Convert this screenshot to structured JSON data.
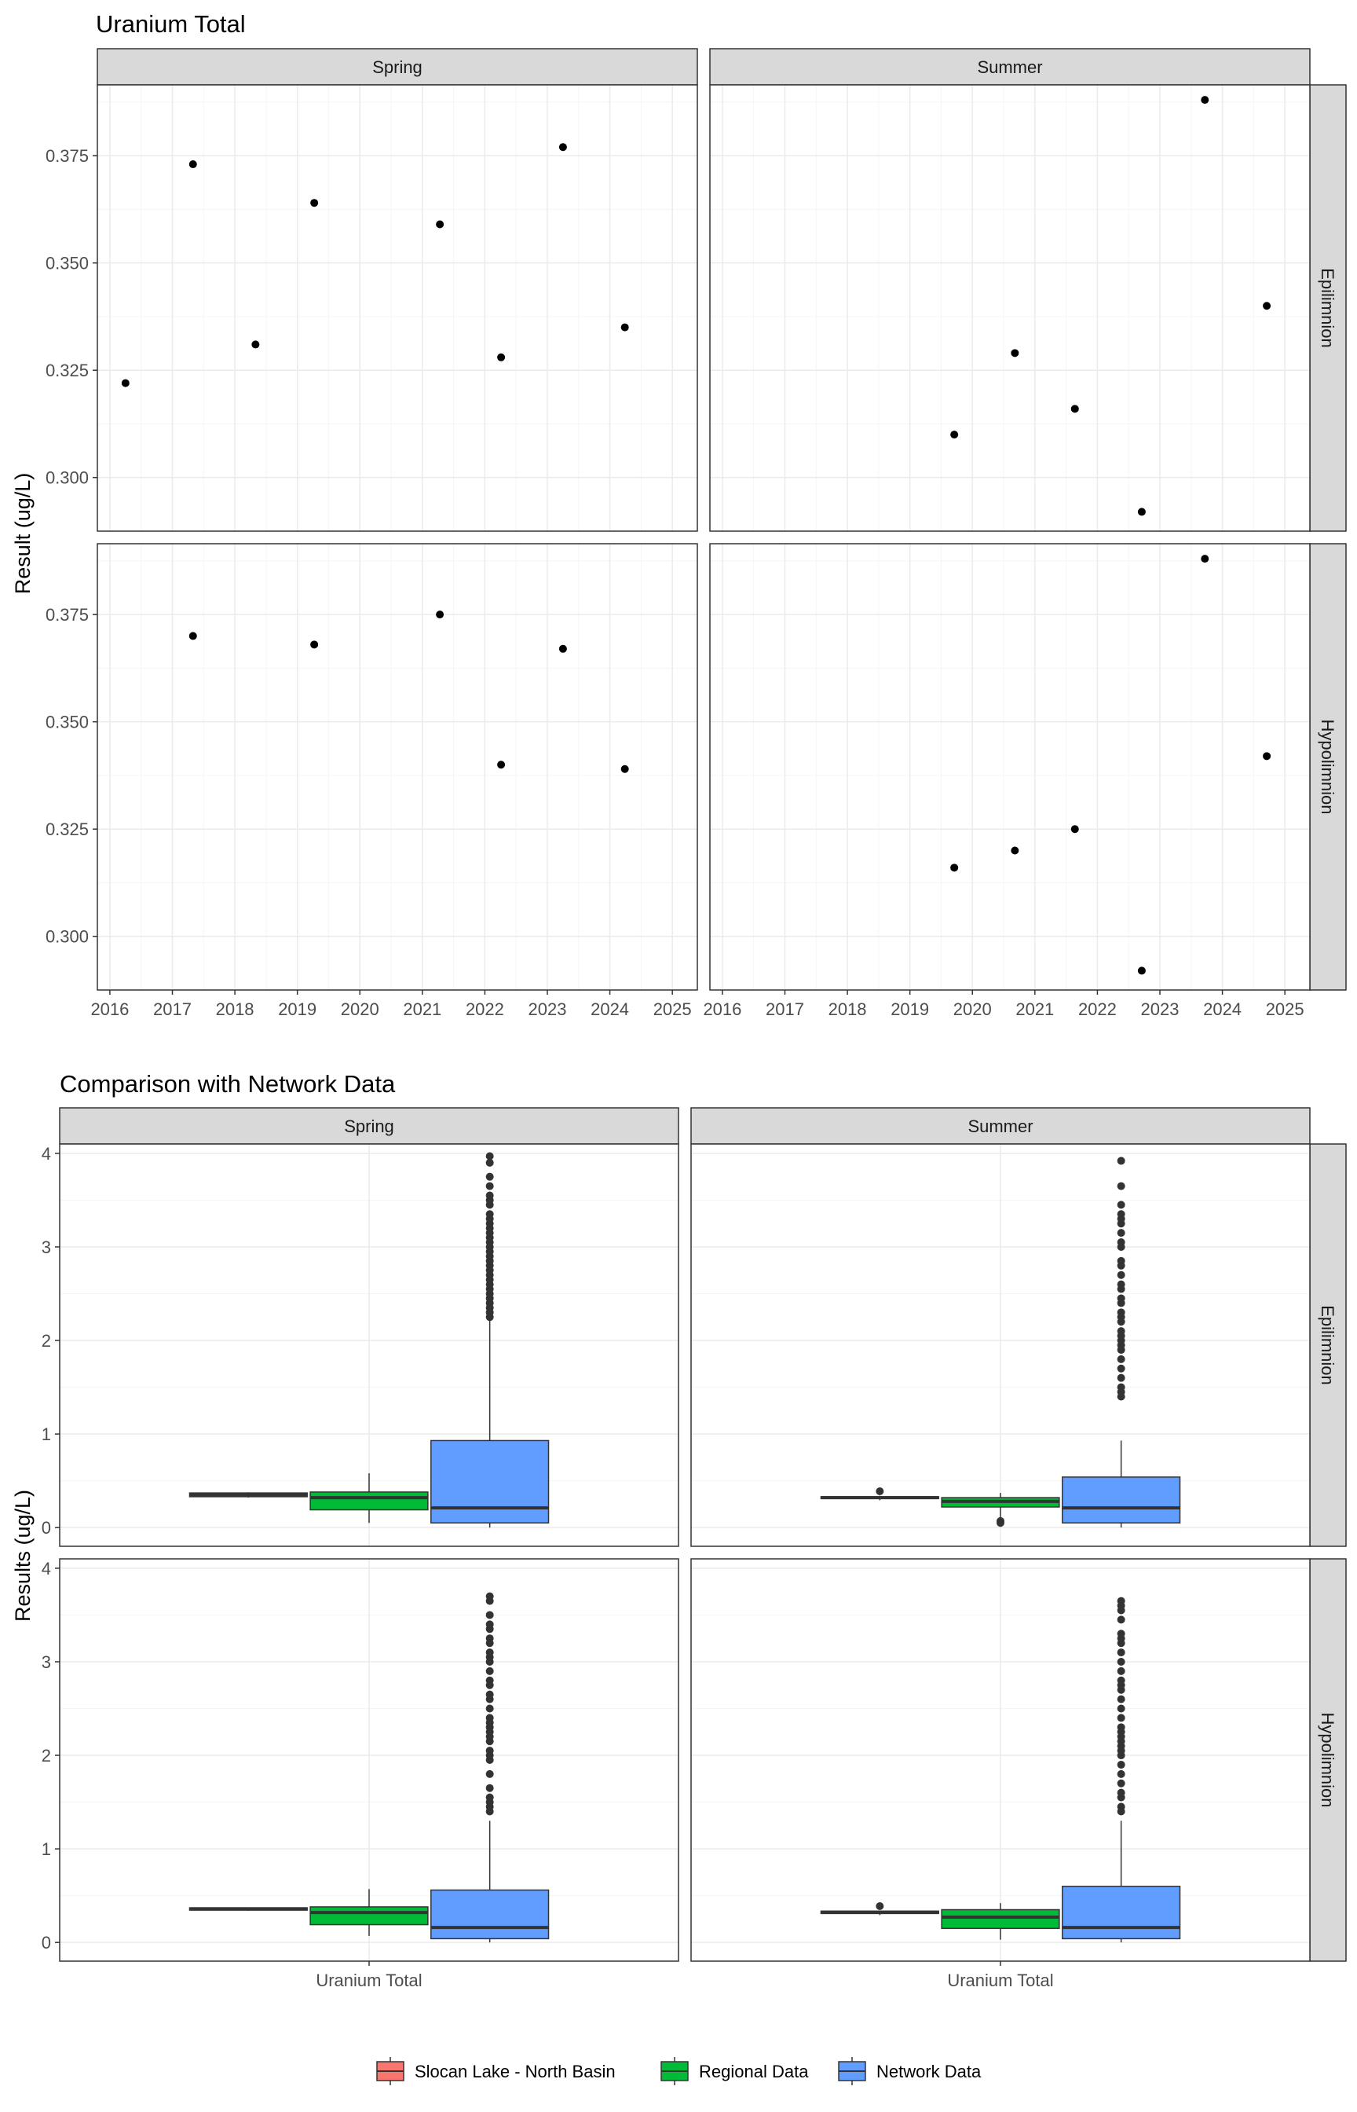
{
  "colors": {
    "panel_border": "#333333",
    "strip_fill": "#d9d9d9",
    "grid_major": "#ebebeb",
    "grid_minor": "#f5f5f5",
    "point": "#000000",
    "tick_text": "#4d4d4d",
    "slocan_fill": "#f8766d",
    "regional_fill": "#00ba38",
    "network_fill": "#619cff"
  },
  "legend": {
    "items": [
      {
        "label": "Slocan Lake - North Basin",
        "color": "#f8766d"
      },
      {
        "label": "Regional Data",
        "color": "#00ba38"
      },
      {
        "label": "Network Data",
        "color": "#619cff"
      }
    ]
  },
  "chart_data": [
    {
      "type": "scatter",
      "title": "Uranium Total",
      "ylabel": "Result (ug/L)",
      "xlabel": "",
      "columns": [
        "Spring",
        "Summer"
      ],
      "rows": [
        "Epilimnion",
        "Hypolimnion"
      ],
      "xlim": [
        2015.8,
        2025.4
      ],
      "ylim": [
        0.2875,
        0.3915
      ],
      "xticks": [
        2016,
        2017,
        2018,
        2019,
        2020,
        2021,
        2022,
        2023,
        2024,
        2025
      ],
      "xtick_labels": [
        "2016",
        "2017",
        "2018",
        "2019",
        "2020",
        "2021",
        "2022",
        "2023",
        "2024",
        "2025"
      ],
      "yticks": [
        0.3,
        0.325,
        0.35,
        0.375
      ],
      "ytick_labels": [
        "0.300",
        "0.325",
        "0.350",
        "0.375"
      ],
      "grid": true,
      "panels": [
        {
          "column": "Spring",
          "row": "Epilimnion",
          "points": [
            [
              2016.25,
              0.322
            ],
            [
              2017.33,
              0.373
            ],
            [
              2018.33,
              0.331
            ],
            [
              2019.27,
              0.364
            ],
            [
              2021.28,
              0.359
            ],
            [
              2022.26,
              0.328
            ],
            [
              2023.25,
              0.377
            ],
            [
              2024.24,
              0.335
            ]
          ]
        },
        {
          "column": "Summer",
          "row": "Epilimnion",
          "points": [
            [
              2019.71,
              0.31
            ],
            [
              2020.68,
              0.329
            ],
            [
              2021.64,
              0.316
            ],
            [
              2022.71,
              0.292
            ],
            [
              2023.72,
              0.388
            ],
            [
              2024.71,
              0.34
            ]
          ]
        },
        {
          "column": "Spring",
          "row": "Hypolimnion",
          "points": [
            [
              2017.33,
              0.37
            ],
            [
              2019.27,
              0.368
            ],
            [
              2021.28,
              0.375
            ],
            [
              2022.26,
              0.34
            ],
            [
              2023.25,
              0.367
            ],
            [
              2024.24,
              0.339
            ]
          ]
        },
        {
          "column": "Summer",
          "row": "Hypolimnion",
          "points": [
            [
              2019.71,
              0.316
            ],
            [
              2020.68,
              0.32
            ],
            [
              2021.64,
              0.325
            ],
            [
              2022.71,
              0.292
            ],
            [
              2023.72,
              0.388
            ],
            [
              2024.71,
              0.342
            ]
          ]
        }
      ]
    },
    {
      "type": "boxplot",
      "title": "Comparison with Network Data",
      "ylabel": "Results (ug/L)",
      "xlabel": "",
      "category": "Uranium Total",
      "columns": [
        "Spring",
        "Summer"
      ],
      "rows": [
        "Epilimnion",
        "Hypolimnion"
      ],
      "ylim": [
        -0.2,
        4.1
      ],
      "yticks": [
        0,
        1,
        2,
        3,
        4
      ],
      "ytick_labels": [
        "0",
        "1",
        "2",
        "3",
        "4"
      ],
      "grid": true,
      "legend_position": "bottom",
      "series": [
        "Slocan Lake - North Basin",
        "Regional Data",
        "Network Data"
      ],
      "panels": [
        {
          "column": "Spring",
          "row": "Epilimnion",
          "boxes": [
            {
              "series": "Slocan Lake - North Basin",
              "q1": 0.33,
              "median": 0.35,
              "q3": 0.37,
              "whisker_low": 0.32,
              "whisker_high": 0.377,
              "outliers": []
            },
            {
              "series": "Regional Data",
              "q1": 0.19,
              "median": 0.32,
              "q3": 0.38,
              "whisker_low": 0.05,
              "whisker_high": 0.58,
              "outliers": []
            },
            {
              "series": "Network Data",
              "q1": 0.05,
              "median": 0.21,
              "q3": 0.93,
              "whisker_low": 0.0,
              "whisker_high": 2.22,
              "outliers": [
                2.25,
                2.3,
                2.35,
                2.4,
                2.45,
                2.5,
                2.55,
                2.6,
                2.65,
                2.7,
                2.75,
                2.8,
                2.85,
                2.9,
                2.95,
                3.0,
                3.05,
                3.1,
                3.15,
                3.2,
                3.25,
                3.3,
                3.35,
                3.45,
                3.5,
                3.55,
                3.65,
                3.75,
                3.9,
                3.97
              ]
            }
          ]
        },
        {
          "column": "Summer",
          "row": "Epilimnion",
          "boxes": [
            {
              "series": "Slocan Lake - North Basin",
              "q1": 0.31,
              "median": 0.32,
              "q3": 0.33,
              "whisker_low": 0.292,
              "whisker_high": 0.34,
              "outliers": [
                0.388
              ]
            },
            {
              "series": "Regional Data",
              "q1": 0.22,
              "median": 0.28,
              "q3": 0.32,
              "whisker_low": 0.1,
              "whisker_high": 0.37,
              "outliers": [
                0.05,
                0.07
              ]
            },
            {
              "series": "Network Data",
              "q1": 0.05,
              "median": 0.21,
              "q3": 0.54,
              "whisker_low": 0.0,
              "whisker_high": 0.93,
              "outliers": [
                1.4,
                1.45,
                1.5,
                1.6,
                1.7,
                1.8,
                1.9,
                1.95,
                2.0,
                2.05,
                2.1,
                2.2,
                2.25,
                2.3,
                2.4,
                2.45,
                2.55,
                2.6,
                2.7,
                2.8,
                2.85,
                3.0,
                3.05,
                3.15,
                3.25,
                3.3,
                3.35,
                3.45,
                3.65,
                3.92
              ]
            }
          ]
        },
        {
          "column": "Spring",
          "row": "Hypolimnion",
          "boxes": [
            {
              "series": "Slocan Lake - North Basin",
              "q1": 0.345,
              "median": 0.36,
              "q3": 0.37,
              "whisker_low": 0.339,
              "whisker_high": 0.375,
              "outliers": []
            },
            {
              "series": "Regional Data",
              "q1": 0.19,
              "median": 0.32,
              "q3": 0.38,
              "whisker_low": 0.07,
              "whisker_high": 0.57,
              "outliers": []
            },
            {
              "series": "Network Data",
              "q1": 0.04,
              "median": 0.16,
              "q3": 0.56,
              "whisker_low": 0.0,
              "whisker_high": 1.3,
              "outliers": [
                1.4,
                1.45,
                1.5,
                1.55,
                1.65,
                1.8,
                1.95,
                2.0,
                2.05,
                2.15,
                2.2,
                2.25,
                2.3,
                2.35,
                2.4,
                2.5,
                2.6,
                2.65,
                2.75,
                2.8,
                2.9,
                3.0,
                3.05,
                3.1,
                3.2,
                3.25,
                3.35,
                3.4,
                3.5,
                3.65,
                3.7
              ]
            }
          ]
        },
        {
          "column": "Summer",
          "row": "Hypolimnion",
          "boxes": [
            {
              "series": "Slocan Lake - North Basin",
              "q1": 0.31,
              "median": 0.32,
              "q3": 0.335,
              "whisker_low": 0.292,
              "whisker_high": 0.342,
              "outliers": [
                0.388
              ]
            },
            {
              "series": "Regional Data",
              "q1": 0.15,
              "median": 0.27,
              "q3": 0.35,
              "whisker_low": 0.03,
              "whisker_high": 0.42,
              "outliers": []
            },
            {
              "series": "Network Data",
              "q1": 0.04,
              "median": 0.16,
              "q3": 0.6,
              "whisker_low": 0.0,
              "whisker_high": 1.3,
              "outliers": [
                1.4,
                1.45,
                1.55,
                1.6,
                1.7,
                1.8,
                1.9,
                2.0,
                2.05,
                2.1,
                2.15,
                2.2,
                2.25,
                2.3,
                2.4,
                2.5,
                2.6,
                2.7,
                2.75,
                2.8,
                2.9,
                3.0,
                3.1,
                3.2,
                3.25,
                3.3,
                3.45,
                3.55,
                3.6,
                3.65
              ]
            }
          ]
        }
      ]
    }
  ]
}
